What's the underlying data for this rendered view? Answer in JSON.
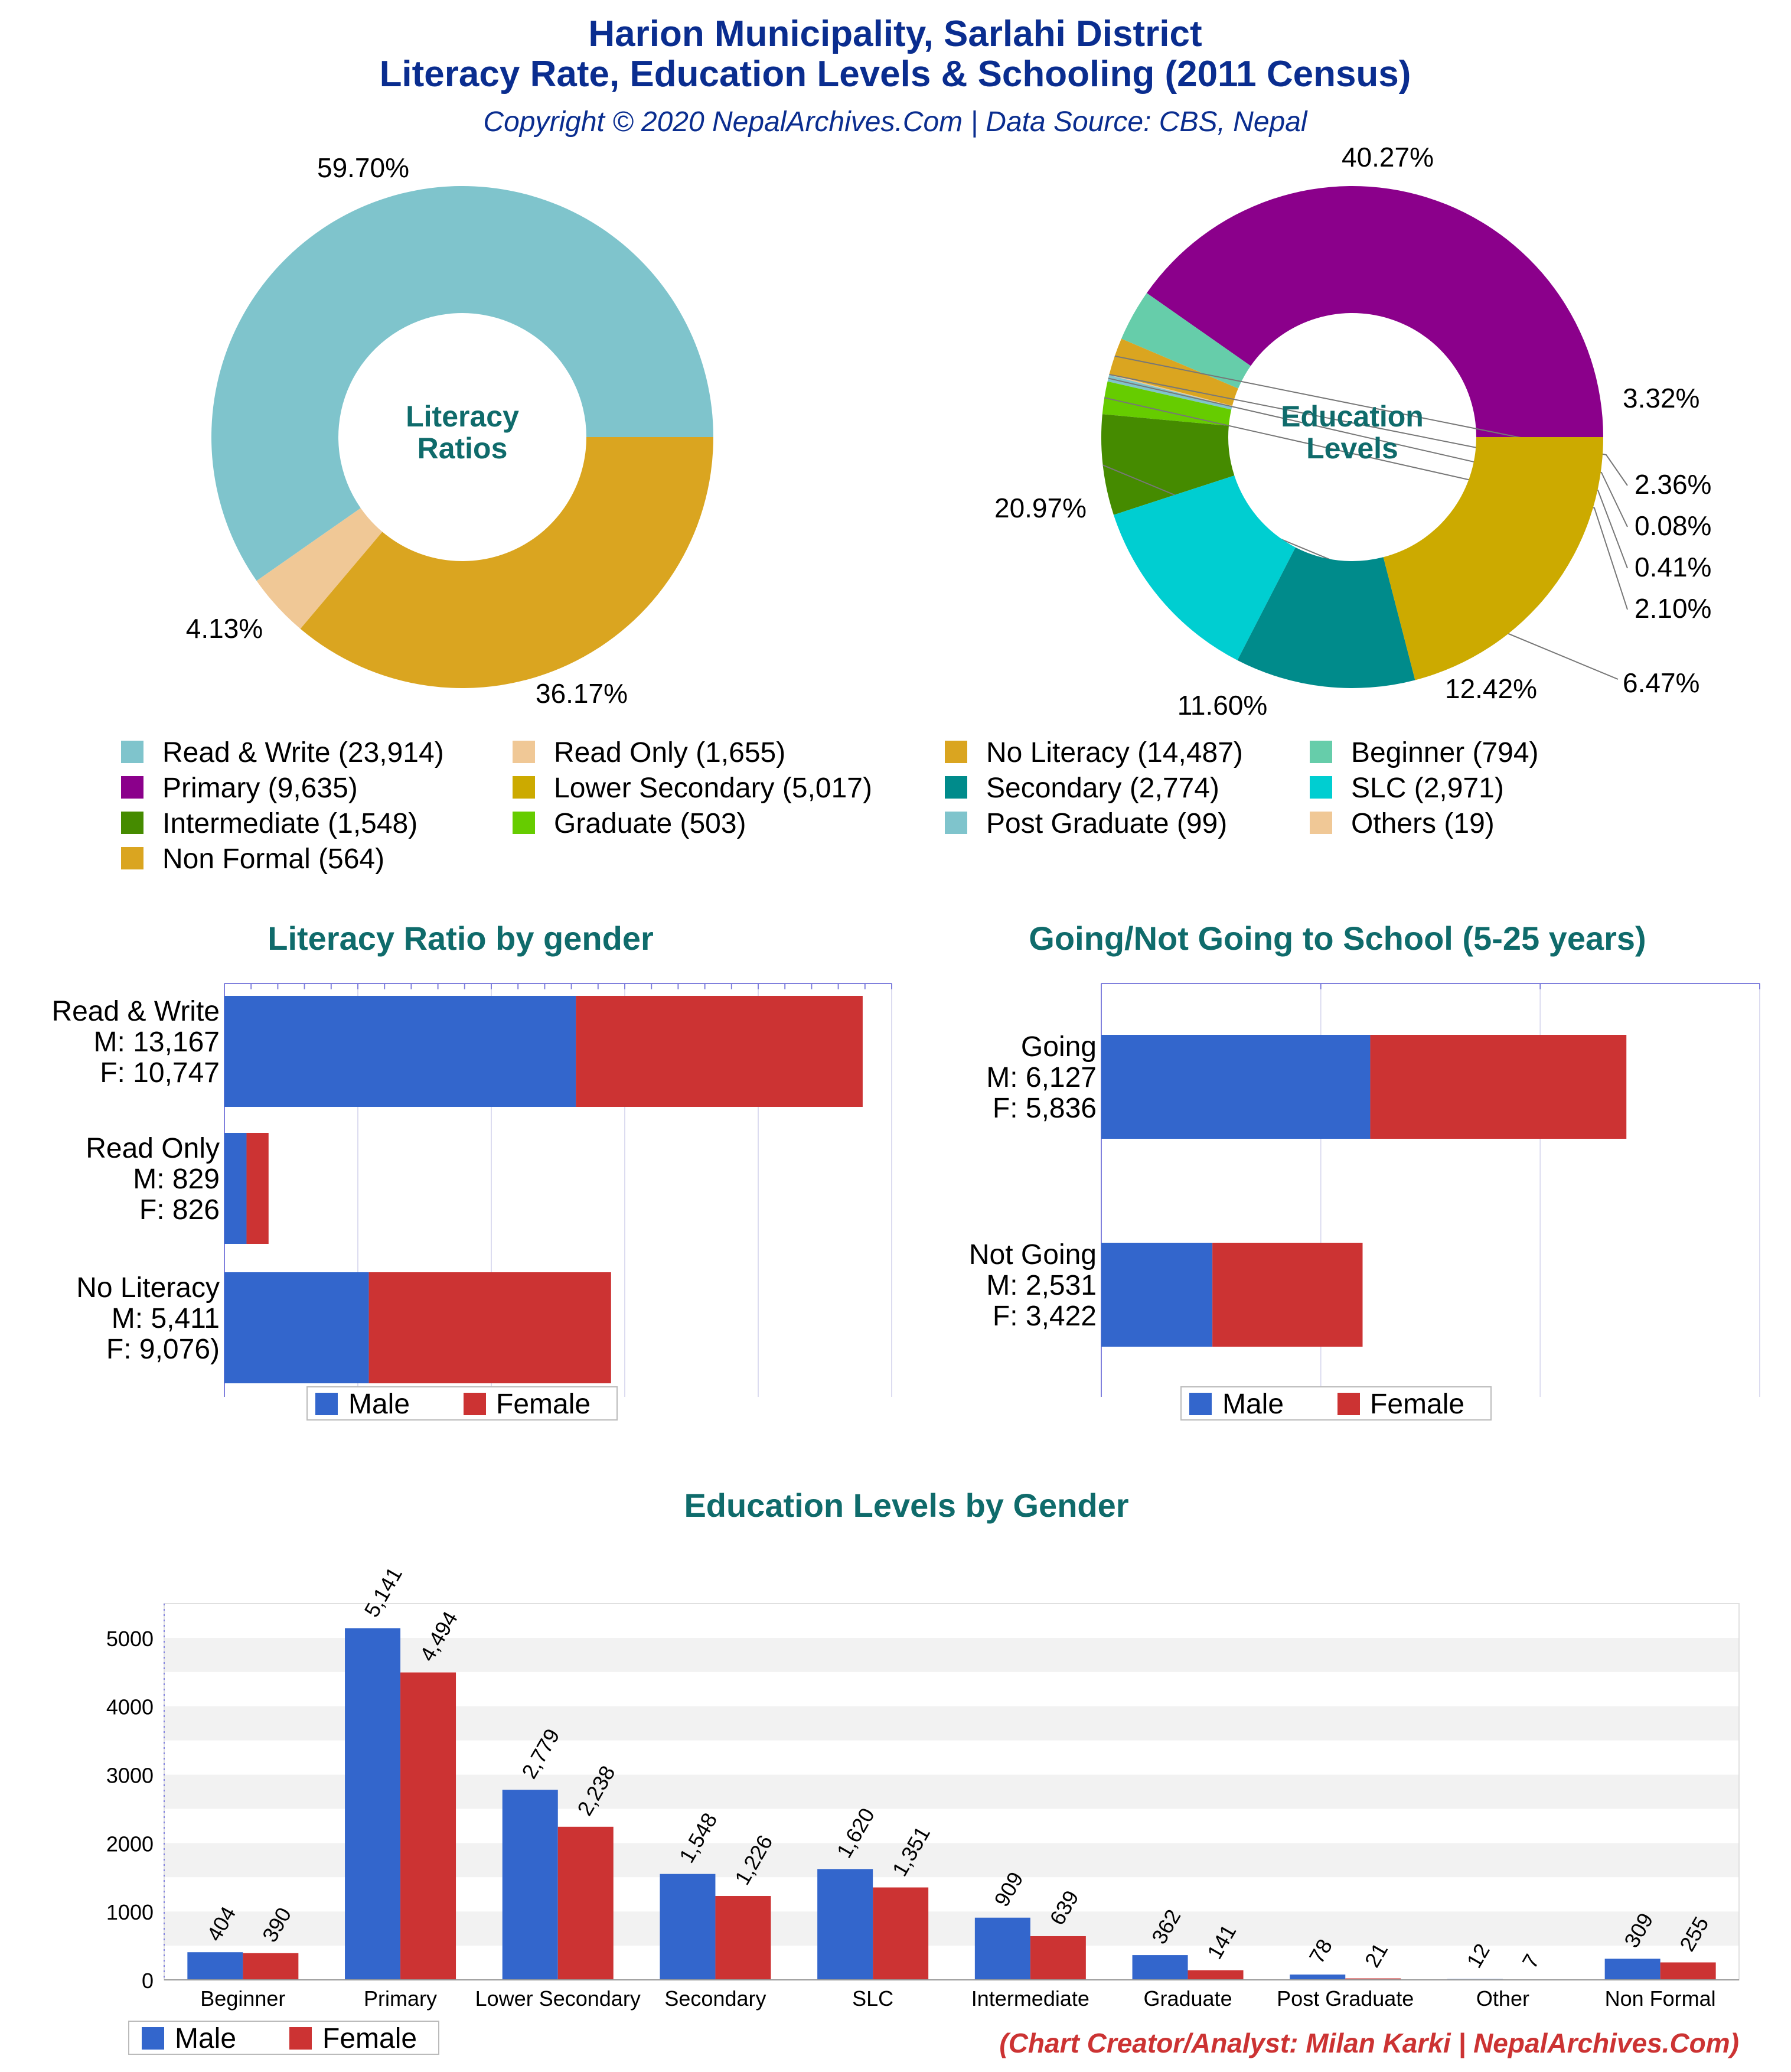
{
  "header": {
    "title_line1": "Harion Municipality, Sarlahi District",
    "title_line2": "Literacy Rate, Education Levels & Schooling (2011 Census)",
    "subtitle": "Copyright © 2020 NepalArchives.Com | Data Source: CBS, Nepal"
  },
  "colors": {
    "title": "#0a2d8f",
    "section_title": "#0f6b6b",
    "male": "#3366cc",
    "female": "#cc3333",
    "credit": "#cc3333"
  },
  "credit": "(Chart Creator/Analyst: Milan Karki | NepalArchives.Com)",
  "chart_data": [
    {
      "type": "pie",
      "center_label_line1": "Literacy",
      "center_label_line2": "Ratios",
      "slices": [
        {
          "label": "Read & Write",
          "value": 23914,
          "percent": "59.70%",
          "color": "#7fc4cc"
        },
        {
          "label": "Read Only",
          "value": 1655,
          "percent": "4.13%",
          "color": "#f0c896"
        },
        {
          "label": "No Literacy",
          "value": 14487,
          "percent": "36.17%",
          "color": "#daa520"
        }
      ]
    },
    {
      "type": "pie",
      "center_label_line1": "Education",
      "center_label_line2": "Levels",
      "slices": [
        {
          "label": "Primary",
          "value": 9635,
          "percent": "40.27%",
          "color": "#8b008b"
        },
        {
          "label": "Beginner",
          "value": 794,
          "percent": "3.32%",
          "color": "#66cdaa"
        },
        {
          "label": "Non Formal",
          "value": 564,
          "percent": "2.36%",
          "color": "#daa520"
        },
        {
          "label": "Others",
          "value": 19,
          "percent": "0.08%",
          "color": "#f0c896"
        },
        {
          "label": "Post Graduate",
          "value": 99,
          "percent": "0.41%",
          "color": "#7fc4cc"
        },
        {
          "label": "Graduate",
          "value": 503,
          "percent": "2.10%",
          "color": "#66cc00"
        },
        {
          "label": "Intermediate",
          "value": 1548,
          "percent": "6.47%",
          "color": "#458b00"
        },
        {
          "label": "SLC",
          "value": 2971,
          "percent": "12.42%",
          "color": "#00ced1"
        },
        {
          "label": "Secondary",
          "value": 2774,
          "percent": "11.60%",
          "color": "#008b8b"
        },
        {
          "label": "Lower Secondary",
          "value": 5017,
          "percent": "20.97%",
          "color": "#ccaa00"
        }
      ]
    },
    {
      "type": "bar",
      "orientation": "horizontal",
      "stacked": true,
      "title": "Literacy Ratio by gender",
      "categories": [
        "Read & Write",
        "Read Only",
        "No Literacy"
      ],
      "category_labels": [
        [
          "Read & Write",
          "M: 13,167",
          "F: 10,747"
        ],
        [
          "Read Only",
          "M: 829",
          "F: 826"
        ],
        [
          "No Literacy",
          "M: 5,411",
          "F: 9,076)"
        ]
      ],
      "series": [
        {
          "name": "Male",
          "values": [
            13167,
            829,
            5411
          ]
        },
        {
          "name": "Female",
          "values": [
            10747,
            826,
            9076
          ]
        }
      ],
      "xlim": [
        0,
        25000
      ],
      "legend": "bottom"
    },
    {
      "type": "bar",
      "orientation": "horizontal",
      "stacked": true,
      "title": "Going/Not Going to School (5-25 years)",
      "categories": [
        "Going",
        "Not Going"
      ],
      "category_labels": [
        [
          "Going",
          "M: 6,127",
          "F: 5,836"
        ],
        [
          "Not Going",
          "M: 2,531",
          "F: 3,422"
        ]
      ],
      "series": [
        {
          "name": "Male",
          "values": [
            6127,
            2531
          ]
        },
        {
          "name": "Female",
          "values": [
            5836,
            3422
          ]
        }
      ],
      "xlim": [
        0,
        15000
      ],
      "legend": "bottom"
    },
    {
      "type": "bar",
      "title": "Education Levels by Gender",
      "categories": [
        "Beginner",
        "Primary",
        "Lower Secondary",
        "Secondary",
        "SLC",
        "Intermediate",
        "Graduate",
        "Post Graduate",
        "Other",
        "Non Formal"
      ],
      "series": [
        {
          "name": "Male",
          "values": [
            404,
            5141,
            2779,
            1548,
            1620,
            909,
            362,
            78,
            12,
            309
          ],
          "labels": [
            "404",
            "5,141",
            "2,779",
            "1,548",
            "1,620",
            "909",
            "362",
            "78",
            "12",
            "309"
          ]
        },
        {
          "name": "Female",
          "values": [
            390,
            4494,
            2238,
            1226,
            1351,
            639,
            141,
            21,
            7,
            255
          ],
          "labels": [
            "390",
            "4,494",
            "2,238",
            "1,226",
            "1,351",
            "639",
            "141",
            "21",
            "7",
            "255"
          ]
        }
      ],
      "y_ticks": [
        "0",
        "1000",
        "2000",
        "3000",
        "4000",
        "5000"
      ],
      "ylim": [
        0,
        5500
      ],
      "legend": "bottom-left"
    }
  ],
  "legend_grid": [
    "Read & Write (23,914)",
    "Read Only (1,655)",
    "No Literacy (14,487)",
    "Beginner (794)",
    "Primary (9,635)",
    "Lower Secondary (5,017)",
    "Secondary (2,774)",
    "SLC (2,971)",
    "Intermediate (1,548)",
    "Graduate (503)",
    "Post Graduate (99)",
    "Others (19)",
    "Non Formal (564)"
  ],
  "legend_grid_colors": [
    "#7fc4cc",
    "#f0c896",
    "#daa520",
    "#66cdaa",
    "#8b008b",
    "#ccaa00",
    "#008b8b",
    "#00ced1",
    "#458b00",
    "#66cc00",
    "#7fc4cc",
    "#f0c896",
    "#daa520"
  ]
}
